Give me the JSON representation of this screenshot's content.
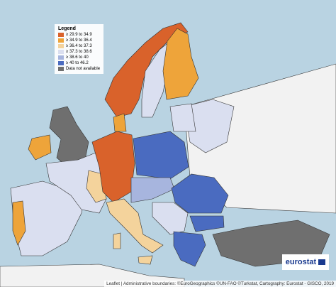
{
  "legend": {
    "title": "Legend",
    "items": [
      {
        "label": "≥ 29.9 to 34.9",
        "color": "#d9622b"
      },
      {
        "label": "≥ 34.9 to 36.4",
        "color": "#eea43a"
      },
      {
        "label": "≥ 36.4 to 37.3",
        "color": "#f4d39c"
      },
      {
        "label": "≥ 37.3 to 38.6",
        "color": "#dadff0"
      },
      {
        "label": "≥ 38.6 to 40",
        "color": "#a7b5de"
      },
      {
        "label": "≥ 40 to 46.2",
        "color": "#4a6bc0"
      },
      {
        "label": "Data not available",
        "color": "#6f6f6f"
      }
    ]
  },
  "logo": "eurostat",
  "attribution": "Leaflet | Administrative boundaries: ©EuroGeographics ©UN-FAO ©Turkstat, Cartography: Eurostat - GISCO, 2019"
}
